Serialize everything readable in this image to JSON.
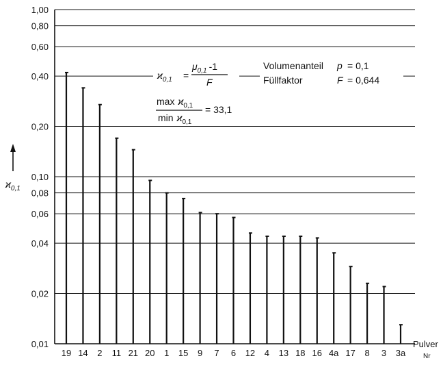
{
  "chart_data": {
    "type": "bar",
    "y_scale": "log",
    "ylim": [
      0.01,
      1.0
    ],
    "grid": true,
    "y_ticks": [
      0.01,
      0.02,
      0.04,
      0.06,
      0.08,
      0.1,
      0.2,
      0.4,
      0.6,
      0.8,
      1.0
    ],
    "y_tick_labels": [
      "0,01",
      "0,02",
      "0,04",
      "0,06",
      "0,08",
      "0,10",
      "0,20",
      "0,40",
      "0,60",
      "0,80",
      "1,00"
    ],
    "categories": [
      "19",
      "14",
      "2",
      "11",
      "21",
      "20",
      "1",
      "15",
      "9",
      "7",
      "6",
      "12",
      "4",
      "13",
      "18",
      "16",
      "4a",
      "17",
      "8",
      "3",
      "3a"
    ],
    "values": [
      0.42,
      0.34,
      0.27,
      0.17,
      0.145,
      0.095,
      0.08,
      0.074,
      0.061,
      0.06,
      0.057,
      0.046,
      0.044,
      0.044,
      0.044,
      0.043,
      0.035,
      0.029,
      0.023,
      0.022,
      0.013
    ],
    "ylabel": {
      "symbol": "ϰ",
      "subscript": "0,1"
    },
    "xlabel": {
      "line1": "Pulver",
      "line2": "Nr"
    },
    "annotations": {
      "formula": {
        "lhs_symbol": "ϰ",
        "lhs_sub": "0,1",
        "eq": "=",
        "num_symbol": "μ",
        "num_sub": "0,1",
        "num_tail": "-1",
        "den": "F"
      },
      "ratio": {
        "num_word": "max",
        "den_word": "min",
        "symbol": "ϰ",
        "sub": "0,1",
        "result": "= 33,1"
      },
      "params": {
        "line1_label": "Volumenanteil",
        "line1_symbol": "p",
        "line1_value": "= 0,1",
        "line2_label": "Füllfaktor",
        "line2_symbol": "F",
        "line2_value": "= 0,644"
      }
    }
  }
}
